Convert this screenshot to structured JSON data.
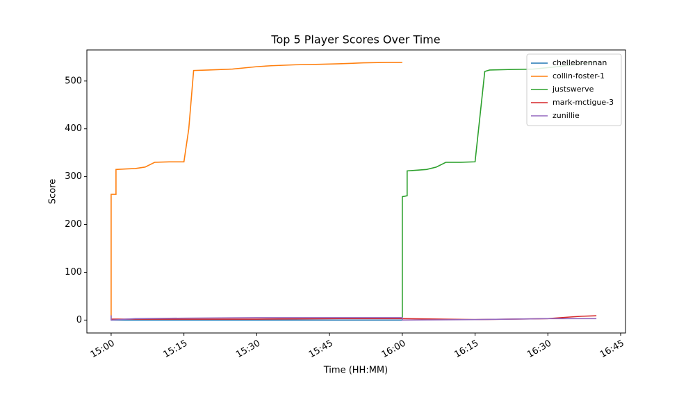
{
  "chart_data": {
    "type": "line",
    "title": "Top 5 Player Scores Over Time",
    "xlabel": "Time (HH:MM)",
    "ylabel": "Score",
    "xlim": [
      "14:55",
      "16:46"
    ],
    "xticks": [
      "15:00",
      "15:15",
      "15:30",
      "15:45",
      "16:00",
      "16:15",
      "16:30",
      "16:45"
    ],
    "ylim": [
      -27,
      565
    ],
    "yticks": [
      0,
      100,
      200,
      300,
      400,
      500
    ],
    "legend": "upper right",
    "grid": false,
    "series": [
      {
        "name": "chellebrennan",
        "color": "#1f77b4",
        "x": [
          "15:00",
          "15:30",
          "16:00"
        ],
        "values": [
          0,
          0,
          0
        ]
      },
      {
        "name": "collin-foster-1",
        "color": "#ff7f0e",
        "x": [
          "15:00",
          "15:00",
          "15:01",
          "15:01",
          "15:03",
          "15:05",
          "15:07",
          "15:09",
          "15:12",
          "15:15",
          "15:16",
          "15:17",
          "15:20",
          "15:25",
          "15:28",
          "15:30",
          "15:33",
          "15:38",
          "15:43",
          "15:47",
          "15:52",
          "15:57",
          "16:00"
        ],
        "values": [
          0,
          263,
          263,
          315,
          316,
          317,
          320,
          330,
          331,
          331,
          400,
          522,
          523,
          525,
          528,
          530,
          532,
          534,
          535,
          536,
          538,
          539,
          539
        ]
      },
      {
        "name": "justswerve",
        "color": "#2ca02c",
        "x": [
          "16:00",
          "16:00",
          "16:01",
          "16:01",
          "16:05",
          "16:07",
          "16:09",
          "16:12",
          "16:15",
          "16:17",
          "16:18",
          "16:22",
          "16:27",
          "16:32",
          "16:36",
          "16:40"
        ],
        "values": [
          0,
          258,
          260,
          312,
          315,
          320,
          330,
          330,
          331,
          520,
          523,
          524,
          525,
          530,
          535,
          540
        ]
      },
      {
        "name": "mark-mctigue-3",
        "color": "#d62728",
        "x": [
          "15:00",
          "15:30",
          "15:47",
          "16:00",
          "16:15",
          "16:30",
          "16:34",
          "16:37",
          "16:40"
        ],
        "values": [
          2,
          2,
          3,
          3,
          1,
          3,
          6,
          8,
          9
        ]
      },
      {
        "name": "zunillie",
        "color": "#9467bd",
        "x": [
          "15:00",
          "15:00",
          "15:05",
          "15:15",
          "15:30",
          "16:00",
          "16:00",
          "16:15",
          "16:30",
          "16:40"
        ],
        "values": [
          10,
          0,
          3,
          4,
          5,
          5,
          0,
          1,
          3,
          3
        ]
      }
    ]
  }
}
